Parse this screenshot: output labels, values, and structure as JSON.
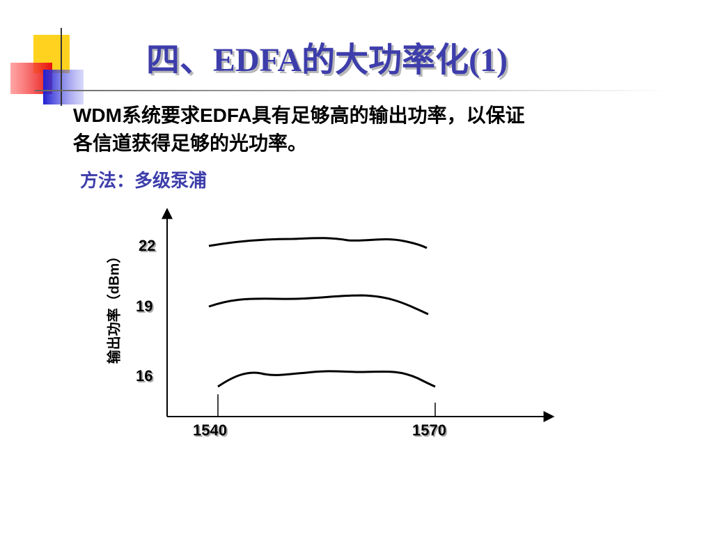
{
  "header": {
    "title": "四、EDFA的大功率化(1)"
  },
  "content": {
    "lines": [
      "WDM系统要求EDFA具有足够高的输出功率，以保证",
      "各信道获得足够的光功率。"
    ],
    "method": "方法：多级泵浦"
  },
  "figure": {
    "y_label": "输出功率（dBm）",
    "y_levels": [
      "22",
      "19",
      "16"
    ],
    "x_labels": [
      "1540",
      "1570"
    ]
  }
}
